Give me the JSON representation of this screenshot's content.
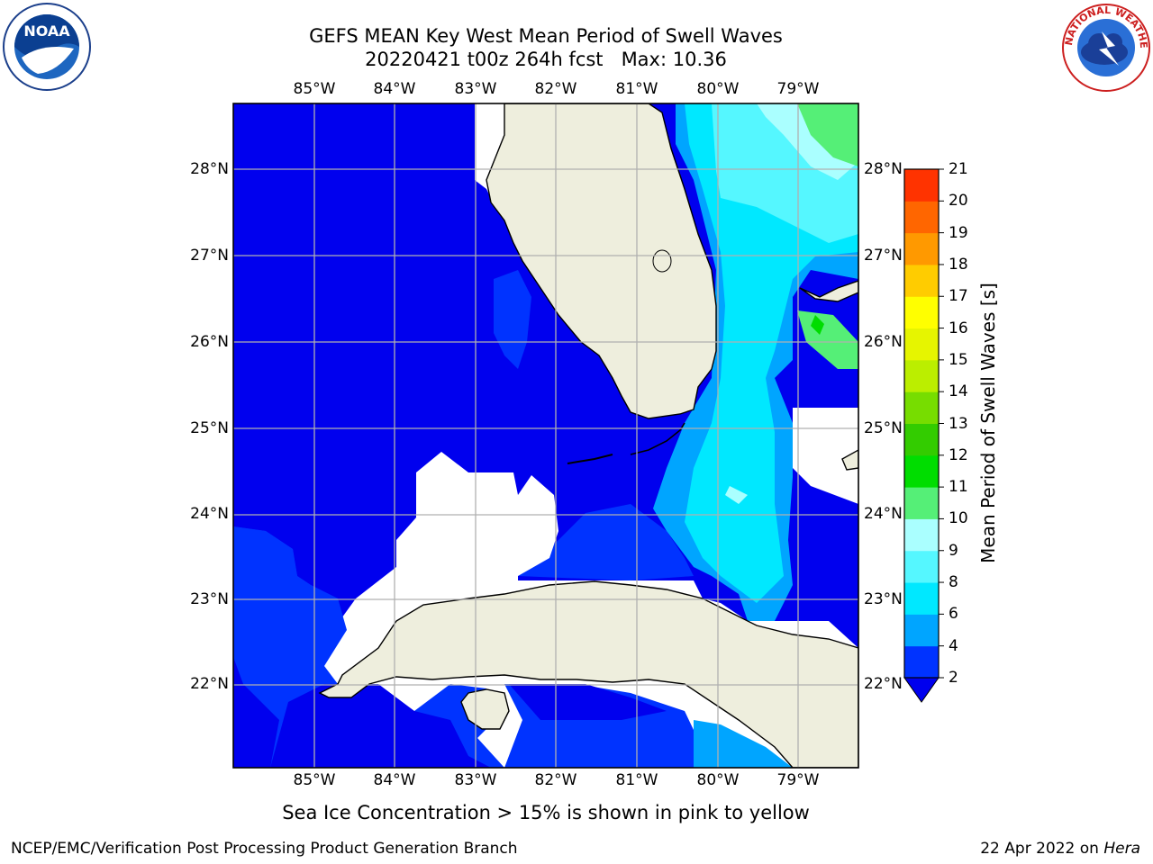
{
  "title_line1": "GEFS MEAN Key West Mean Period of Swell Waves",
  "title_line2": "20220421 t00z 264h fcst   Max: 10.36",
  "logos": {
    "left": "noaa-logo",
    "right": "nws-logo",
    "right_text": "NATIONAL WEATHER SERVICE"
  },
  "map": {
    "lon_labels": [
      "85°W",
      "84°W",
      "83°W",
      "82°W",
      "81°W",
      "80°W",
      "79°W"
    ],
    "lat_labels": [
      "28°N",
      "27°N",
      "26°N",
      "25°N",
      "24°N",
      "23°N",
      "22°N"
    ]
  },
  "colorbar": {
    "label": "Mean Period of Swell Waves [s]",
    "ticks": [
      "2",
      "4",
      "6",
      "8",
      "9",
      "10",
      "11",
      "12",
      "13",
      "14",
      "15",
      "16",
      "17",
      "18",
      "19",
      "20",
      "21"
    ],
    "colors": [
      "#0033ff",
      "#00a5ff",
      "#00e8ff",
      "#55f7ff",
      "#aaffff",
      "#55ef77",
      "#00dd00",
      "#33cc00",
      "#77dd00",
      "#bbee00",
      "#e6f500",
      "#ffff00",
      "#ffcc00",
      "#ff9900",
      "#ff6600",
      "#ff3300",
      "#ff0000"
    ],
    "under_color": "#0000ee"
  },
  "ice_note": "Sea Ice Concentration > 15% is shown in pink to yellow",
  "footer_left": "NCEP/EMC/Verification Post Processing Product Generation Branch",
  "footer_right_date": "22 Apr 2022 on",
  "footer_right_machine": "Hera"
}
